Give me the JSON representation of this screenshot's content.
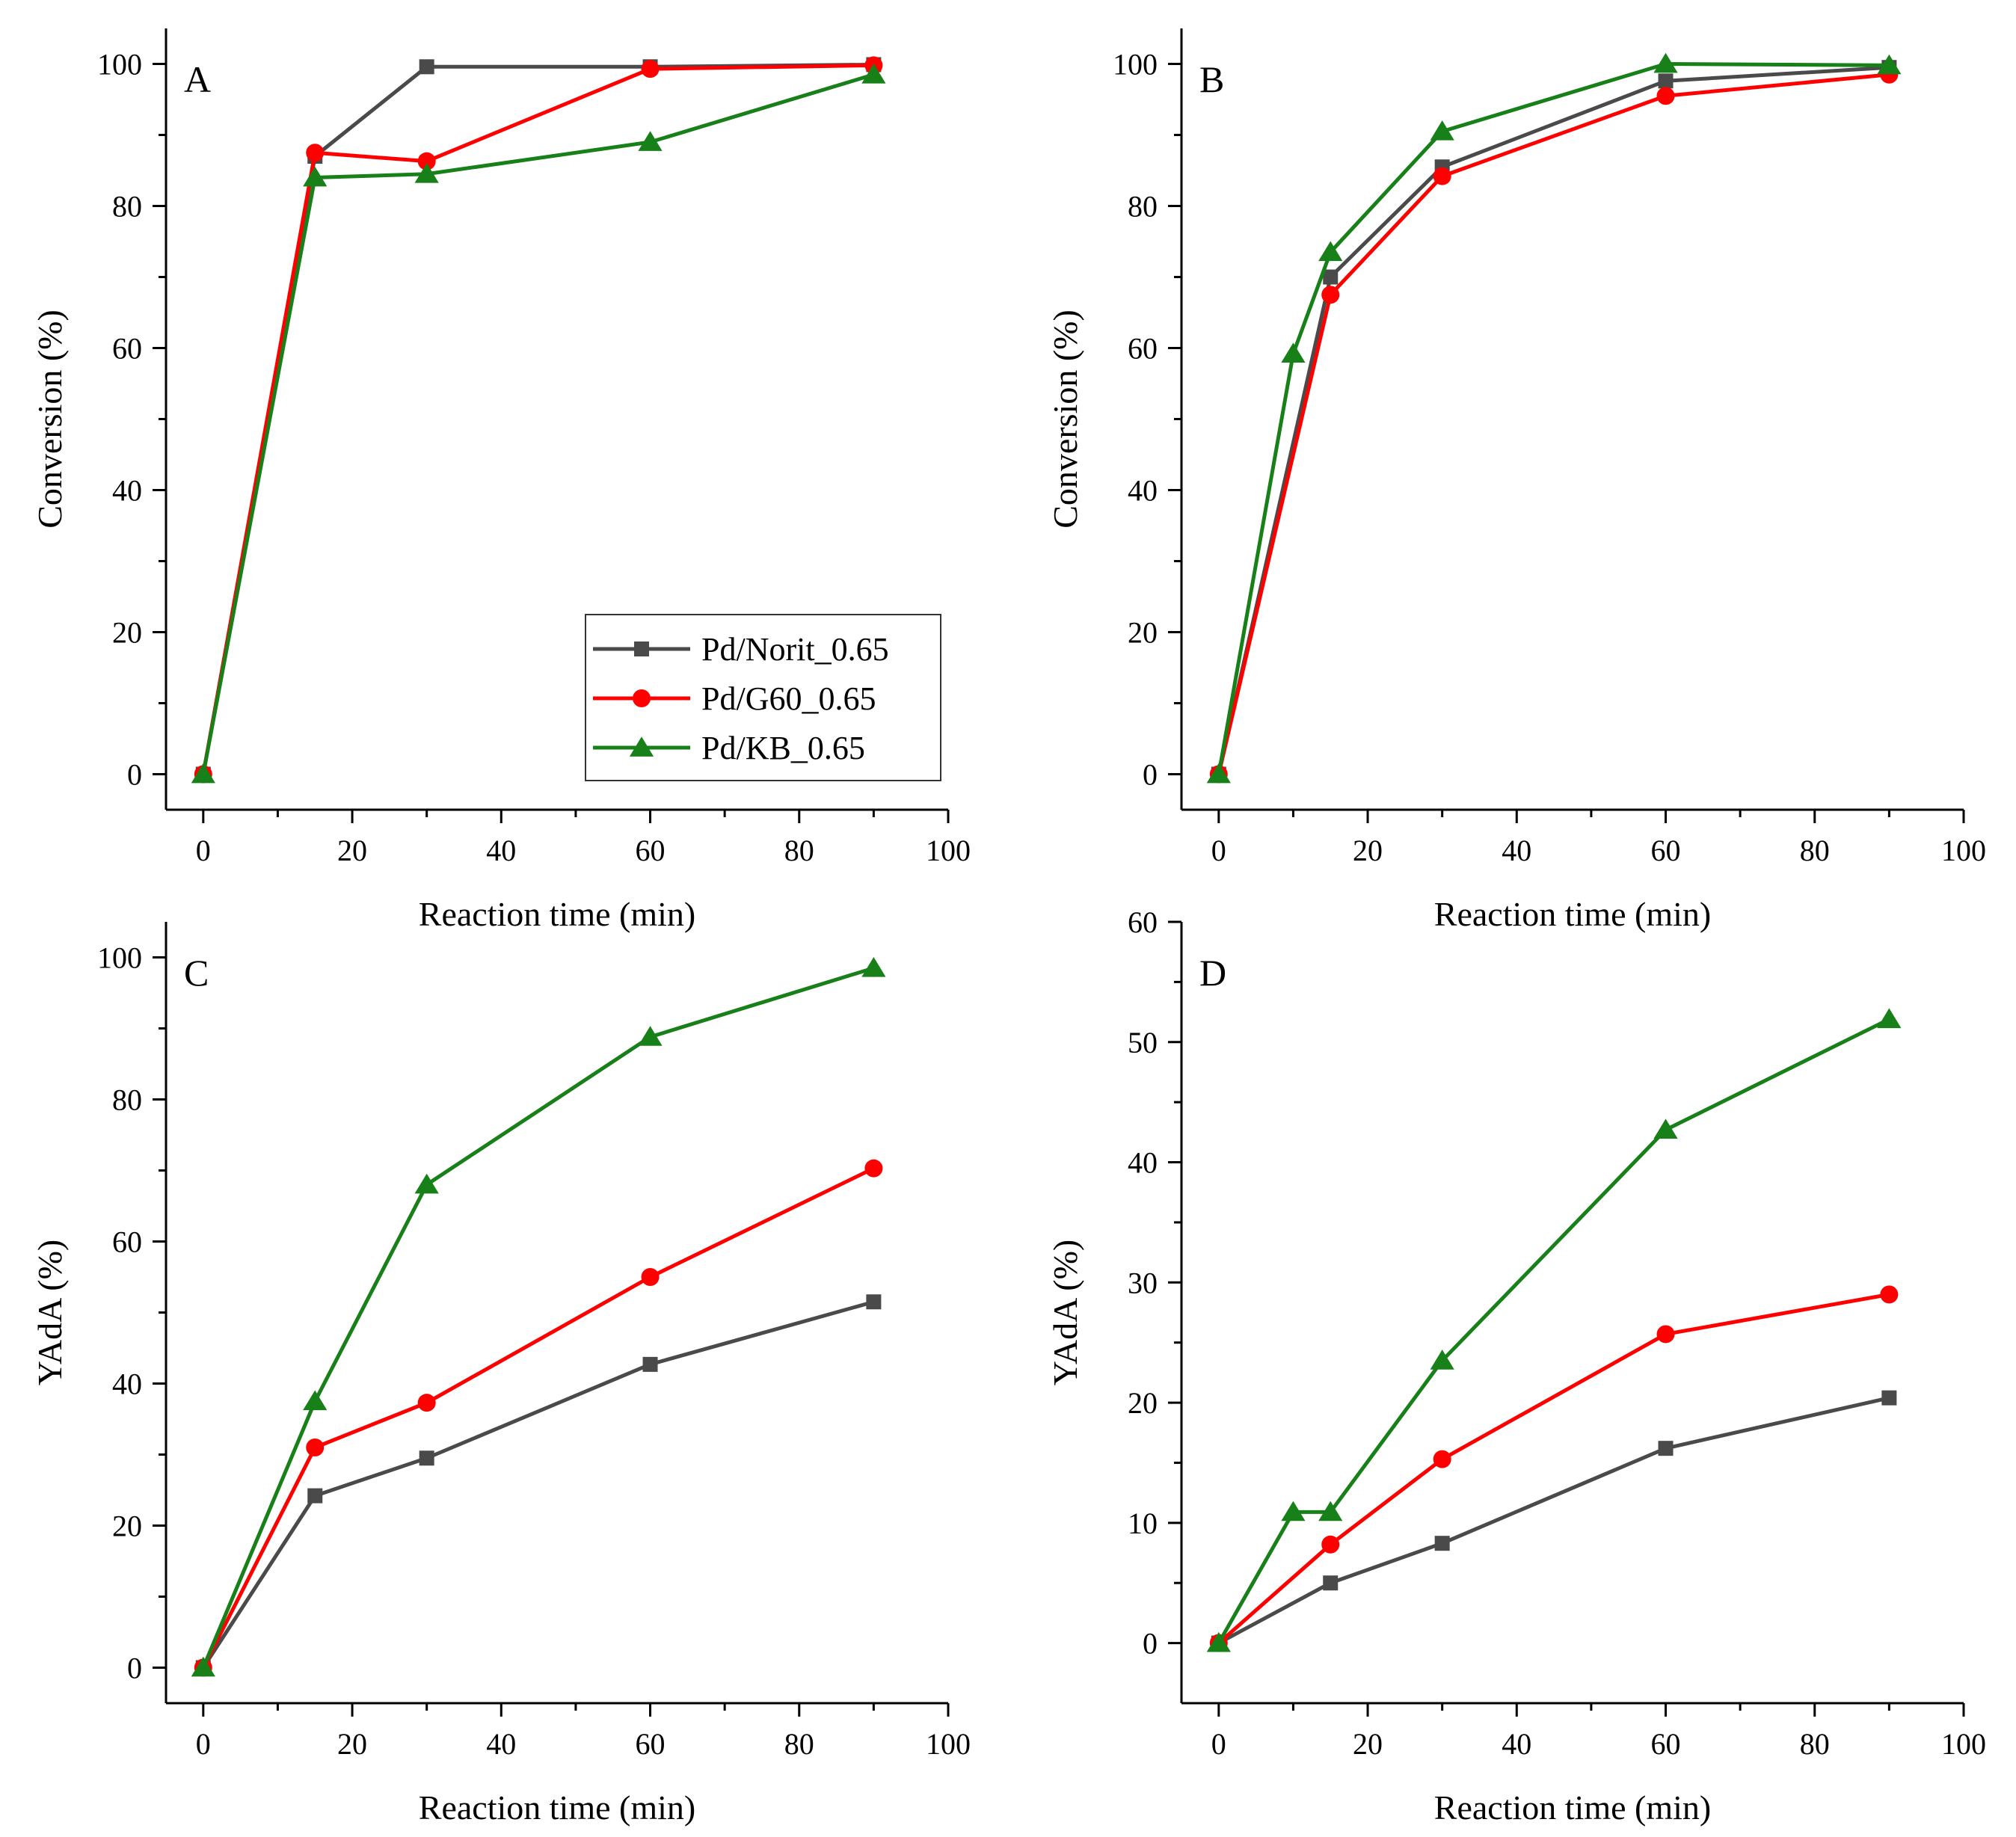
{
  "colors": {
    "norit": "#4a4a4a",
    "g60": "#ff0000",
    "kb": "#188018",
    "axis": "#000000",
    "legend_border": "#333333"
  },
  "legend": {
    "items": [
      {
        "label": "Pd/Norit_0.65",
        "series": "norit",
        "marker": "square"
      },
      {
        "label": "Pd/G60_0.65",
        "series": "g60",
        "marker": "circle"
      },
      {
        "label": "Pd/KB_0.65",
        "series": "kb",
        "marker": "triangle"
      }
    ]
  },
  "chart_data": [
    {
      "panel": "A",
      "type": "line",
      "xlabel": "Reaction time (min)",
      "ylabel": "Conversion (%)",
      "xlim": [
        -5,
        100
      ],
      "ylim": [
        -5,
        105
      ],
      "xticks": [
        0,
        20,
        40,
        60,
        80,
        100
      ],
      "yticks": [
        0,
        20,
        40,
        60,
        80,
        100
      ],
      "legend": true,
      "series": [
        {
          "name": "Pd/Norit_0.65",
          "key": "norit",
          "marker": "square",
          "x": [
            0,
            15,
            30,
            60,
            90
          ],
          "y": [
            0,
            87,
            99.6,
            99.6,
            99.9
          ]
        },
        {
          "name": "Pd/G60_0.65",
          "key": "g60",
          "marker": "circle",
          "x": [
            0,
            15,
            30,
            60,
            90
          ],
          "y": [
            0,
            87.5,
            86.3,
            99.3,
            99.8
          ]
        },
        {
          "name": "Pd/KB_0.65",
          "key": "kb",
          "marker": "triangle",
          "x": [
            0,
            15,
            30,
            60,
            90
          ],
          "y": [
            0,
            84,
            84.5,
            89,
            98.5
          ]
        }
      ]
    },
    {
      "panel": "B",
      "type": "line",
      "xlabel": "Reaction time (min)",
      "ylabel": "Conversion (%)",
      "xlim": [
        -5,
        100
      ],
      "ylim": [
        -5,
        105
      ],
      "xticks": [
        0,
        20,
        40,
        60,
        80,
        100
      ],
      "yticks": [
        0,
        20,
        40,
        60,
        80,
        100
      ],
      "legend": false,
      "series": [
        {
          "name": "Pd/Norit_0.65",
          "key": "norit",
          "marker": "square",
          "x": [
            0,
            15,
            30,
            60,
            90
          ],
          "y": [
            0,
            70,
            85.5,
            97.6,
            99.5
          ]
        },
        {
          "name": "Pd/G60_0.65",
          "key": "g60",
          "marker": "circle",
          "x": [
            0,
            15,
            30,
            60,
            90
          ],
          "y": [
            0,
            67.5,
            84.2,
            95.5,
            98.5
          ]
        },
        {
          "name": "Pd/KB_0.65",
          "key": "kb",
          "marker": "triangle",
          "x": [
            0,
            10,
            15,
            30,
            60,
            90
          ],
          "y": [
            0,
            59.2,
            73.5,
            90.5,
            100,
            99.8
          ]
        }
      ]
    },
    {
      "panel": "C",
      "type": "line",
      "xlabel": "Reaction time (min)",
      "ylabel": "YAdA (%)",
      "xlim": [
        -5,
        100
      ],
      "ylim": [
        -5,
        105
      ],
      "xticks": [
        0,
        20,
        40,
        60,
        80,
        100
      ],
      "yticks": [
        0,
        20,
        40,
        60,
        80,
        100
      ],
      "legend": false,
      "series": [
        {
          "name": "Pd/Norit_0.65",
          "key": "norit",
          "marker": "square",
          "x": [
            0,
            15,
            30,
            60,
            90
          ],
          "y": [
            0,
            24.2,
            29.5,
            42.7,
            51.5
          ]
        },
        {
          "name": "Pd/G60_0.65",
          "key": "g60",
          "marker": "circle",
          "x": [
            0,
            15,
            30,
            60,
            90
          ],
          "y": [
            0,
            31,
            37.3,
            55,
            70.3
          ]
        },
        {
          "name": "Pd/KB_0.65",
          "key": "kb",
          "marker": "triangle",
          "x": [
            0,
            15,
            30,
            60,
            90
          ],
          "y": [
            0,
            37.5,
            68,
            88.8,
            98.5
          ]
        }
      ]
    },
    {
      "panel": "D",
      "type": "line",
      "xlabel": "Reaction time (min)",
      "ylabel": "YAdA (%)",
      "xlim": [
        -5,
        100
      ],
      "ylim": [
        -5,
        60
      ],
      "xticks": [
        0,
        20,
        40,
        60,
        80,
        100
      ],
      "yticks": [
        0,
        10,
        20,
        30,
        40,
        50,
        60
      ],
      "legend": false,
      "series": [
        {
          "name": "Pd/Norit_0.65",
          "key": "norit",
          "marker": "square",
          "x": [
            0,
            15,
            30,
            60,
            90
          ],
          "y": [
            0,
            5,
            8.3,
            16.2,
            20.4
          ]
        },
        {
          "name": "Pd/G60_0.65",
          "key": "g60",
          "marker": "circle",
          "x": [
            0,
            15,
            30,
            60,
            90
          ],
          "y": [
            0,
            8.2,
            15.3,
            25.7,
            29
          ]
        },
        {
          "name": "Pd/KB_0.65",
          "key": "kb",
          "marker": "triangle",
          "x": [
            0,
            10,
            15,
            30,
            60,
            90
          ],
          "y": [
            0,
            10.9,
            10.9,
            23.5,
            42.7,
            51.9
          ]
        }
      ]
    }
  ]
}
